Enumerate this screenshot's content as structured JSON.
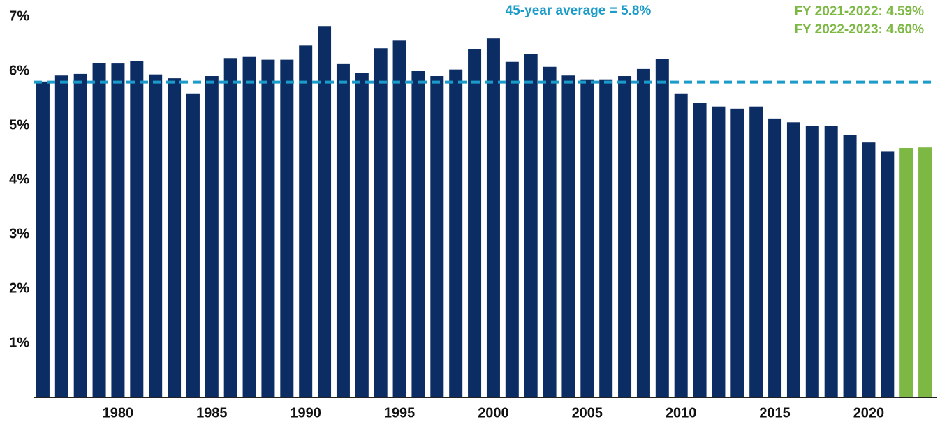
{
  "chart_data": {
    "type": "bar",
    "categories": [
      null,
      null,
      null,
      null,
      "1980",
      null,
      null,
      null,
      null,
      "1985",
      null,
      null,
      null,
      null,
      "1990",
      null,
      null,
      null,
      null,
      "1995",
      null,
      null,
      null,
      null,
      "2000",
      null,
      null,
      null,
      null,
      "2005",
      null,
      null,
      null,
      null,
      "2010",
      null,
      null,
      null,
      null,
      "2015",
      null,
      null,
      null,
      null,
      "2020",
      null,
      null,
      null
    ],
    "values": [
      5.81,
      5.92,
      5.95,
      6.15,
      6.14,
      6.18,
      5.94,
      5.87,
      5.58,
      5.91,
      6.24,
      6.26,
      6.21,
      6.21,
      6.47,
      6.83,
      6.13,
      5.97,
      6.42,
      6.56,
      6.0,
      5.91,
      6.03,
      6.41,
      6.6,
      6.17,
      6.31,
      6.08,
      5.92,
      5.85,
      5.85,
      5.91,
      6.04,
      6.23,
      5.58,
      5.42,
      5.35,
      5.31,
      5.35,
      5.13,
      5.06,
      5.0,
      5.0,
      4.83,
      4.69,
      4.52,
      4.59,
      4.6
    ],
    "bar_colors": [
      "#0b2d64",
      "#0b2d64",
      "#0b2d64",
      "#0b2d64",
      "#0b2d64",
      "#0b2d64",
      "#0b2d64",
      "#0b2d64",
      "#0b2d64",
      "#0b2d64",
      "#0b2d64",
      "#0b2d64",
      "#0b2d64",
      "#0b2d64",
      "#0b2d64",
      "#0b2d64",
      "#0b2d64",
      "#0b2d64",
      "#0b2d64",
      "#0b2d64",
      "#0b2d64",
      "#0b2d64",
      "#0b2d64",
      "#0b2d64",
      "#0b2d64",
      "#0b2d64",
      "#0b2d64",
      "#0b2d64",
      "#0b2d64",
      "#0b2d64",
      "#0b2d64",
      "#0b2d64",
      "#0b2d64",
      "#0b2d64",
      "#0b2d64",
      "#0b2d64",
      "#0b2d64",
      "#0b2d64",
      "#0b2d64",
      "#0b2d64",
      "#0b2d64",
      "#0b2d64",
      "#0b2d64",
      "#0b2d64",
      "#0b2d64",
      "#0b2d64",
      "#7cb843",
      "#7cb843"
    ],
    "ylim": [
      0,
      7
    ],
    "yticks": [
      {
        "value": 1,
        "label": "1%"
      },
      {
        "value": 2,
        "label": "2%"
      },
      {
        "value": 3,
        "label": "3%"
      },
      {
        "value": 4,
        "label": "4%"
      },
      {
        "value": 5,
        "label": "5%"
      },
      {
        "value": 6,
        "label": "6%"
      },
      {
        "value": 7,
        "label": "7%"
      }
    ],
    "grid": false,
    "average": {
      "value": 5.8,
      "label": "45-year average = 5.8%",
      "color": "#1a9bc9"
    },
    "annotations": [
      {
        "text": "FY 2021-2022: 4.59%",
        "color": "#7cb843"
      },
      {
        "text": "FY 2022-2023: 4.60%",
        "color": "#7cb843"
      }
    ]
  }
}
